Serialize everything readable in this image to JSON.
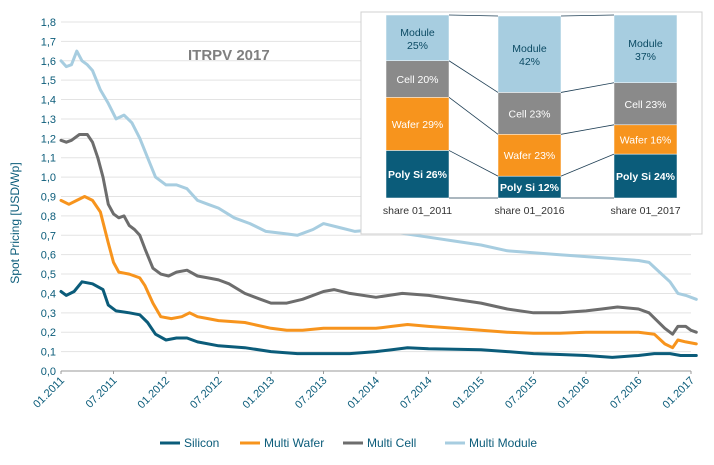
{
  "chart_data": {
    "type": "line",
    "title": "ITRPV 2017",
    "ylabel": "Spot Pricing [USD/Wp]",
    "xlabel": "",
    "ylim": [
      0,
      1.8
    ],
    "yticks": [
      "0,0",
      "0,1",
      "0,2",
      "0,3",
      "0,4",
      "0,5",
      "0,6",
      "0,7",
      "0,8",
      "0,9",
      "1,0",
      "1,1",
      "1,2",
      "1,3",
      "1,4",
      "1,5",
      "1,6",
      "1,7",
      "1,8"
    ],
    "xticks": [
      "01.2011",
      "07.2011",
      "01.2012",
      "07.2012",
      "01.2013",
      "07.2013",
      "01.2014",
      "07.2014",
      "01.2015",
      "07.2015",
      "01.2016",
      "07.2016",
      "01.2017"
    ],
    "legend_position": "bottom",
    "series": [
      {
        "name": "Silicon",
        "color": "#0b5c7a",
        "points": [
          [
            0,
            0.41
          ],
          [
            0.1,
            0.39
          ],
          [
            0.25,
            0.41
          ],
          [
            0.4,
            0.46
          ],
          [
            0.6,
            0.45
          ],
          [
            0.8,
            0.42
          ],
          [
            0.9,
            0.34
          ],
          [
            1.05,
            0.31
          ],
          [
            1.3,
            0.3
          ],
          [
            1.5,
            0.29
          ],
          [
            1.65,
            0.25
          ],
          [
            1.8,
            0.19
          ],
          [
            2.0,
            0.16
          ],
          [
            2.2,
            0.17
          ],
          [
            2.4,
            0.17
          ],
          [
            2.6,
            0.15
          ],
          [
            3.0,
            0.13
          ],
          [
            3.5,
            0.12
          ],
          [
            4.0,
            0.1
          ],
          [
            4.5,
            0.09
          ],
          [
            5.0,
            0.09
          ],
          [
            5.5,
            0.09
          ],
          [
            6.0,
            0.1
          ],
          [
            6.3,
            0.11
          ],
          [
            6.6,
            0.12
          ],
          [
            7.0,
            0.115
          ],
          [
            8.0,
            0.11
          ],
          [
            8.5,
            0.1
          ],
          [
            9.0,
            0.09
          ],
          [
            9.5,
            0.085
          ],
          [
            10.0,
            0.08
          ],
          [
            10.5,
            0.07
          ],
          [
            11.0,
            0.08
          ],
          [
            11.3,
            0.09
          ],
          [
            11.6,
            0.09
          ],
          [
            11.8,
            0.08
          ],
          [
            12.0,
            0.08
          ],
          [
            12.1,
            0.08
          ]
        ]
      },
      {
        "name": "Multi Wafer",
        "color": "#f7941d",
        "points": [
          [
            0,
            0.88
          ],
          [
            0.15,
            0.86
          ],
          [
            0.3,
            0.88
          ],
          [
            0.45,
            0.9
          ],
          [
            0.6,
            0.88
          ],
          [
            0.75,
            0.82
          ],
          [
            0.9,
            0.66
          ],
          [
            1.0,
            0.56
          ],
          [
            1.1,
            0.51
          ],
          [
            1.3,
            0.5
          ],
          [
            1.5,
            0.48
          ],
          [
            1.6,
            0.44
          ],
          [
            1.75,
            0.35
          ],
          [
            1.9,
            0.28
          ],
          [
            2.1,
            0.27
          ],
          [
            2.3,
            0.28
          ],
          [
            2.45,
            0.3
          ],
          [
            2.6,
            0.28
          ],
          [
            2.8,
            0.27
          ],
          [
            3.0,
            0.26
          ],
          [
            3.5,
            0.25
          ],
          [
            4.0,
            0.22
          ],
          [
            4.3,
            0.21
          ],
          [
            4.6,
            0.21
          ],
          [
            5.0,
            0.22
          ],
          [
            5.5,
            0.22
          ],
          [
            6.0,
            0.22
          ],
          [
            6.3,
            0.23
          ],
          [
            6.6,
            0.24
          ],
          [
            7.0,
            0.23
          ],
          [
            7.5,
            0.22
          ],
          [
            8.0,
            0.21
          ],
          [
            8.5,
            0.2
          ],
          [
            9.0,
            0.195
          ],
          [
            9.5,
            0.195
          ],
          [
            10.0,
            0.2
          ],
          [
            10.5,
            0.2
          ],
          [
            11.0,
            0.2
          ],
          [
            11.3,
            0.19
          ],
          [
            11.5,
            0.14
          ],
          [
            11.65,
            0.12
          ],
          [
            11.75,
            0.16
          ],
          [
            11.9,
            0.15
          ],
          [
            12.1,
            0.14
          ]
        ]
      },
      {
        "name": "Multi Cell",
        "color": "#6d6d6d",
        "points": [
          [
            0,
            1.19
          ],
          [
            0.1,
            1.18
          ],
          [
            0.2,
            1.19
          ],
          [
            0.35,
            1.22
          ],
          [
            0.5,
            1.22
          ],
          [
            0.6,
            1.18
          ],
          [
            0.7,
            1.1
          ],
          [
            0.8,
            1.0
          ],
          [
            0.9,
            0.86
          ],
          [
            1.0,
            0.81
          ],
          [
            1.1,
            0.79
          ],
          [
            1.2,
            0.8
          ],
          [
            1.3,
            0.75
          ],
          [
            1.4,
            0.73
          ],
          [
            1.5,
            0.7
          ],
          [
            1.6,
            0.63
          ],
          [
            1.75,
            0.53
          ],
          [
            1.9,
            0.5
          ],
          [
            2.05,
            0.49
          ],
          [
            2.2,
            0.51
          ],
          [
            2.4,
            0.52
          ],
          [
            2.6,
            0.49
          ],
          [
            2.8,
            0.48
          ],
          [
            3.0,
            0.47
          ],
          [
            3.2,
            0.45
          ],
          [
            3.5,
            0.4
          ],
          [
            3.8,
            0.37
          ],
          [
            4.0,
            0.35
          ],
          [
            4.3,
            0.35
          ],
          [
            4.6,
            0.37
          ],
          [
            5.0,
            0.41
          ],
          [
            5.2,
            0.42
          ],
          [
            5.5,
            0.4
          ],
          [
            6.0,
            0.38
          ],
          [
            6.5,
            0.4
          ],
          [
            7.0,
            0.39
          ],
          [
            7.5,
            0.37
          ],
          [
            8.0,
            0.35
          ],
          [
            8.5,
            0.32
          ],
          [
            9.0,
            0.3
          ],
          [
            9.5,
            0.3
          ],
          [
            10.0,
            0.31
          ],
          [
            10.3,
            0.32
          ],
          [
            10.6,
            0.33
          ],
          [
            11.0,
            0.32
          ],
          [
            11.2,
            0.3
          ],
          [
            11.5,
            0.22
          ],
          [
            11.65,
            0.19
          ],
          [
            11.75,
            0.23
          ],
          [
            11.9,
            0.23
          ],
          [
            12.0,
            0.21
          ],
          [
            12.1,
            0.2
          ]
        ]
      },
      {
        "name": "Multi Module",
        "color": "#a7cde0",
        "points": [
          [
            0,
            1.6
          ],
          [
            0.1,
            1.57
          ],
          [
            0.2,
            1.58
          ],
          [
            0.3,
            1.65
          ],
          [
            0.4,
            1.6
          ],
          [
            0.5,
            1.58
          ],
          [
            0.6,
            1.55
          ],
          [
            0.75,
            1.45
          ],
          [
            0.9,
            1.38
          ],
          [
            1.05,
            1.3
          ],
          [
            1.2,
            1.32
          ],
          [
            1.35,
            1.28
          ],
          [
            1.5,
            1.2
          ],
          [
            1.65,
            1.1
          ],
          [
            1.8,
            1.0
          ],
          [
            2.0,
            0.96
          ],
          [
            2.2,
            0.96
          ],
          [
            2.4,
            0.94
          ],
          [
            2.6,
            0.88
          ],
          [
            2.8,
            0.86
          ],
          [
            3.0,
            0.84
          ],
          [
            3.3,
            0.79
          ],
          [
            3.6,
            0.76
          ],
          [
            3.9,
            0.72
          ],
          [
            4.2,
            0.71
          ],
          [
            4.5,
            0.7
          ],
          [
            4.8,
            0.73
          ],
          [
            5.0,
            0.76
          ],
          [
            5.3,
            0.74
          ],
          [
            5.6,
            0.72
          ],
          [
            6.0,
            0.73
          ],
          [
            6.5,
            0.71
          ],
          [
            7.0,
            0.69
          ],
          [
            7.5,
            0.67
          ],
          [
            8.0,
            0.65
          ],
          [
            8.5,
            0.62
          ],
          [
            9.0,
            0.61
          ],
          [
            9.5,
            0.6
          ],
          [
            10.0,
            0.59
          ],
          [
            10.5,
            0.58
          ],
          [
            11.0,
            0.57
          ],
          [
            11.2,
            0.56
          ],
          [
            11.4,
            0.51
          ],
          [
            11.6,
            0.46
          ],
          [
            11.75,
            0.4
          ],
          [
            11.9,
            0.39
          ],
          [
            12.1,
            0.37
          ]
        ]
      }
    ],
    "inset": {
      "type": "stacked_bar",
      "categories": [
        "share 01_2011",
        "share 01_2016",
        "share 01_2017"
      ],
      "segments": [
        {
          "name": "Poly Si",
          "color": "#0b5c7a",
          "labels": [
            "Poly Si 26%",
            "Poly Si 12%",
            "Poly Si 24%"
          ],
          "values": [
            0.26,
            0.12,
            0.24
          ]
        },
        {
          "name": "Wafer",
          "color": "#f7941d",
          "labels": [
            "Wafer 29%",
            "Wafer 23%",
            "Wafer 16%"
          ],
          "values": [
            0.29,
            0.23,
            0.16
          ]
        },
        {
          "name": "Cell",
          "color": "#8a8a8a",
          "labels": [
            "Cell 20%",
            "Cell 23%",
            "Cell 23%"
          ],
          "values": [
            0.2,
            0.23,
            0.23
          ]
        },
        {
          "name": "Module",
          "color": "#a7cde0",
          "labels": [
            "Module\n25%",
            "Module\n42%",
            "Module\n37%"
          ],
          "values": [
            0.25,
            0.42,
            0.37
          ]
        }
      ],
      "totals_usd_per_wp": [
        1.6,
        0.59,
        0.37
      ]
    }
  }
}
